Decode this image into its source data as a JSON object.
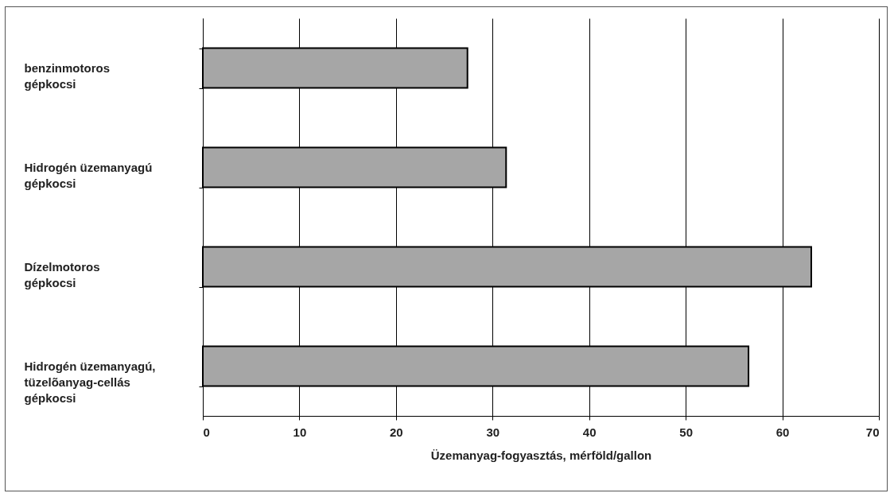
{
  "chart_data": {
    "type": "bar",
    "orientation": "horizontal",
    "xlabel": "Üzemanyag-fogyasztás, mérföld/gallon",
    "categories": [
      "benzinmotoros gépkocsi",
      "Hidrogén üzemanyagú gépkocsi",
      "Dízelmotoros gépkocsi",
      "Hidrogén üzemanyagú, tüzelõanyag-cellás gépkocsi"
    ],
    "values": [
      27.4,
      31.4,
      63.0,
      56.5
    ],
    "color": "#a6a6a6",
    "xlim": [
      0,
      70
    ],
    "xticks": [
      0,
      10,
      20,
      30,
      40,
      50,
      60,
      70
    ],
    "grid": "x"
  }
}
